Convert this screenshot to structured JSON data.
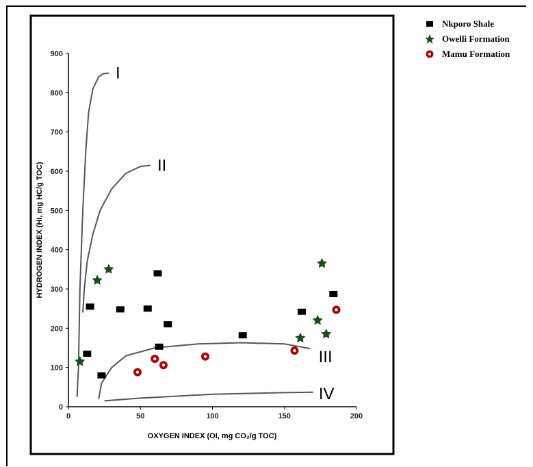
{
  "chart_data": {
    "type": "scatter",
    "xlabel": "OXYGEN INDEX (OI, mg CO₂/g TOC)",
    "ylabel": "HYDROGEN INDEX (HI, mg HC/g TOC)",
    "xlim": [
      0,
      200
    ],
    "ylim": [
      0,
      900
    ],
    "x_ticks": [
      "0",
      "50",
      "100",
      "150",
      "200"
    ],
    "y_ticks": [
      "0",
      "100",
      "200",
      "300",
      "400",
      "500",
      "600",
      "700",
      "800",
      "900"
    ],
    "grid": false,
    "legend_position": "top-right outside",
    "series": [
      {
        "name": "Nkporo Shale",
        "marker": "square",
        "color": "#000000",
        "points": [
          [
            13,
            135
          ],
          [
            15,
            255
          ],
          [
            23,
            80
          ],
          [
            36,
            248
          ],
          [
            55,
            250
          ],
          [
            62,
            340
          ],
          [
            63,
            153
          ],
          [
            69,
            210
          ],
          [
            121,
            182
          ],
          [
            162,
            242
          ],
          [
            184,
            287
          ]
        ]
      },
      {
        "name": "Owelli Formation",
        "marker": "star",
        "color": "#1a4d1a",
        "points": [
          [
            8,
            115
          ],
          [
            20,
            322
          ],
          [
            28,
            350
          ],
          [
            161,
            175
          ],
          [
            173,
            220
          ],
          [
            176,
            365
          ],
          [
            179,
            185
          ]
        ]
      },
      {
        "name": "Mamu Formation",
        "marker": "ring",
        "color": "#b00000",
        "points": [
          [
            48,
            88
          ],
          [
            60,
            122
          ],
          [
            66,
            106
          ],
          [
            95,
            128
          ],
          [
            157,
            143
          ],
          [
            186,
            247
          ]
        ]
      }
    ],
    "reference_curves": [
      {
        "label": "I",
        "points": [
          [
            6,
            25
          ],
          [
            7,
            100
          ],
          [
            8,
            300
          ],
          [
            10,
            500
          ],
          [
            12,
            650
          ],
          [
            14,
            750
          ],
          [
            17,
            810
          ],
          [
            21,
            840
          ],
          [
            24,
            848
          ],
          [
            28,
            850
          ]
        ]
      },
      {
        "label": "II",
        "points": [
          [
            10,
            240
          ],
          [
            11,
            300
          ],
          [
            13,
            370
          ],
          [
            17,
            440
          ],
          [
            22,
            500
          ],
          [
            30,
            555
          ],
          [
            40,
            595
          ],
          [
            50,
            612
          ],
          [
            57,
            615
          ]
        ]
      },
      {
        "label": "III",
        "points": [
          [
            21,
            20
          ],
          [
            23,
            60
          ],
          [
            30,
            100
          ],
          [
            40,
            130
          ],
          [
            60,
            150
          ],
          [
            90,
            160
          ],
          [
            120,
            163
          ],
          [
            150,
            160
          ],
          [
            168,
            148
          ]
        ]
      },
      {
        "label": "IV",
        "points": [
          [
            25,
            15
          ],
          [
            50,
            22
          ],
          [
            100,
            32
          ],
          [
            150,
            36
          ],
          [
            170,
            37
          ]
        ]
      }
    ]
  }
}
